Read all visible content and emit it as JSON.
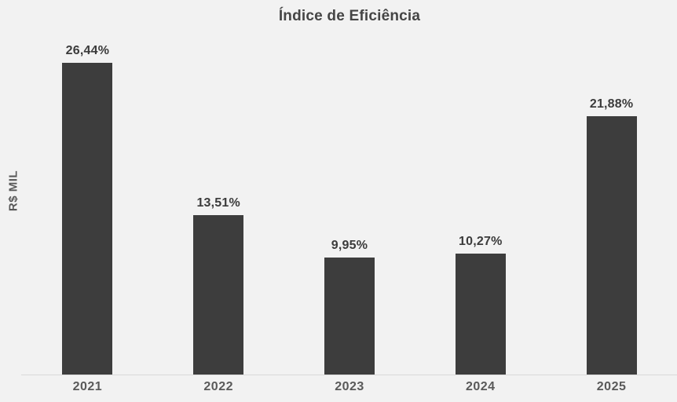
{
  "title": "Índice de Eficiência",
  "y_axis_label": "R$ MIL",
  "chart_data": {
    "type": "bar",
    "title": "Índice de Eficiência",
    "xlabel": "",
    "ylabel": "R$ MIL",
    "categories": [
      "2021",
      "2022",
      "2023",
      "2024",
      "2025"
    ],
    "values": [
      26.44,
      13.51,
      9.95,
      10.27,
      21.88
    ],
    "value_labels": [
      "26,44%",
      "13,51%",
      "9,95%",
      "10,27%",
      "21,88%"
    ],
    "ylim": [
      0,
      28
    ],
    "grid": false,
    "legend_position": "none",
    "bar_color": "#3d3d3d"
  },
  "colors": {
    "background": "#f2f2f2",
    "bar": "#3d3d3d",
    "title": "#454545",
    "value_label": "#3b3b3b",
    "axis_label": "#595959",
    "axis_line": "#d9d9d9"
  }
}
